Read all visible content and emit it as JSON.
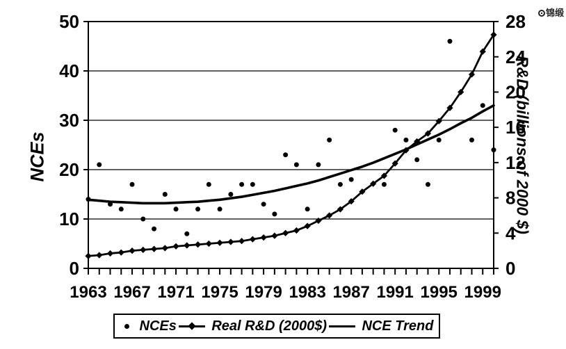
{
  "watermark": {
    "icon": "brand-logo-icon",
    "text": "锦缎"
  },
  "chart_data": {
    "type": "combo",
    "x": [
      1963,
      1964,
      1965,
      1966,
      1967,
      1968,
      1969,
      1970,
      1971,
      1972,
      1973,
      1974,
      1975,
      1976,
      1977,
      1978,
      1979,
      1980,
      1981,
      1982,
      1983,
      1984,
      1985,
      1986,
      1987,
      1988,
      1989,
      1990,
      1991,
      1992,
      1993,
      1994,
      1995,
      1996,
      1997,
      1998,
      1999,
      2000
    ],
    "x_tick_labels": [
      "1963",
      "1967",
      "1971",
      "1975",
      "1979",
      "1983",
      "1987",
      "1991",
      "1995",
      "1999"
    ],
    "left_axis": {
      "title": "NCEs",
      "ticks": [
        0,
        10,
        20,
        30,
        40,
        50
      ],
      "range": [
        0,
        50
      ]
    },
    "right_axis": {
      "title": "R&D (billions of 2000 $)",
      "ticks": [
        0,
        4,
        8,
        12,
        16,
        20,
        24,
        28
      ],
      "range": [
        0,
        28
      ]
    },
    "grid": true,
    "colors": {
      "foreground": "#000000",
      "background": "#ffffff"
    },
    "series": [
      {
        "name": "NCEs",
        "type": "scatter",
        "marker": "dot",
        "axis": "left",
        "values": [
          14,
          21,
          13,
          12,
          17,
          10,
          8,
          15,
          12,
          7,
          12,
          17,
          12,
          15,
          17,
          17,
          13,
          11,
          23,
          21,
          12,
          21,
          26,
          17,
          18,
          null,
          null,
          17,
          28,
          26,
          22,
          17,
          26,
          46,
          null,
          26,
          33,
          24
        ]
      },
      {
        "name": "Real R&D (2000$)",
        "type": "line",
        "marker": "diamond",
        "axis": "right",
        "values": [
          1.4,
          1.5,
          1.7,
          1.8,
          2.0,
          2.1,
          2.2,
          2.3,
          2.5,
          2.6,
          2.7,
          2.8,
          2.9,
          3.0,
          3.1,
          3.3,
          3.5,
          3.7,
          4.0,
          4.3,
          4.8,
          5.4,
          6.0,
          6.7,
          7.6,
          8.7,
          9.6,
          10.5,
          11.9,
          13.4,
          14.4,
          15.3,
          16.7,
          18.2,
          20.0,
          22.0,
          24.6,
          26.5
        ]
      },
      {
        "name": "NCE Trend",
        "type": "line",
        "marker": "none",
        "axis": "left",
        "values": [
          13.9,
          13.7,
          13.5,
          13.4,
          13.3,
          13.2,
          13.2,
          13.2,
          13.3,
          13.4,
          13.5,
          13.7,
          13.9,
          14.2,
          14.5,
          14.9,
          15.3,
          15.7,
          16.2,
          16.7,
          17.2,
          17.8,
          18.5,
          19.2,
          19.9,
          20.6,
          21.4,
          22.3,
          23.2,
          24.1,
          25.1,
          26.1,
          27.1,
          28.2,
          29.4,
          30.5,
          31.8,
          33.0
        ]
      }
    ],
    "legend": {
      "position": "bottom",
      "items": [
        "NCEs",
        "Real R&D (2000$)",
        "NCE Trend"
      ]
    }
  }
}
